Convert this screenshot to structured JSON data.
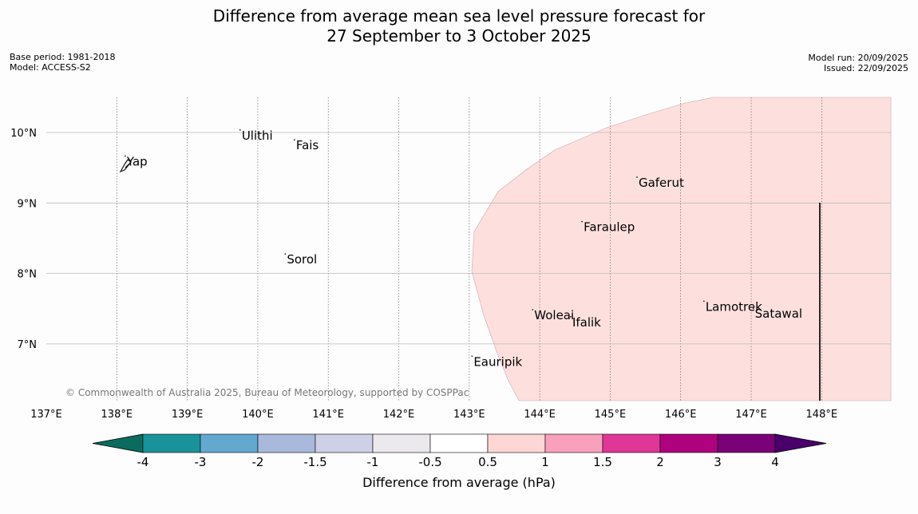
{
  "title_line1": "Difference from average mean sea level pressure forecast for",
  "title_line2": "27 September to 3 October 2025",
  "meta_left": [
    "Base period: 1981-2018",
    "Model: ACCESS-S2"
  ],
  "meta_right": [
    "Model run: 20/09/2025",
    "Issued: 22/09/2025"
  ],
  "copyright": "© Commonwealth of Australia 2025, Bureau of Meteorology, supported by COSPPac",
  "map": {
    "lon_range": [
      137,
      149
    ],
    "lat_range": [
      6.2,
      10.5
    ],
    "lon_ticks": [
      "137°E",
      "138°E",
      "139°E",
      "140°E",
      "141°E",
      "142°E",
      "143°E",
      "144°E",
      "145°E",
      "146°E",
      "147°E",
      "148°E"
    ],
    "lat_ticks": [
      "10°N",
      "9°N",
      "8°N",
      "7°N"
    ],
    "places": [
      {
        "name": "Ulithi",
        "lon": 139.75,
        "lat": 9.9
      },
      {
        "name": "Fais",
        "lon": 140.52,
        "lat": 9.76
      },
      {
        "name": "Yap",
        "lon": 138.12,
        "lat": 9.53
      },
      {
        "name": "Gaferut",
        "lon": 145.38,
        "lat": 9.23
      },
      {
        "name": "Faraulep",
        "lon": 144.6,
        "lat": 8.6
      },
      {
        "name": "Sorol",
        "lon": 140.39,
        "lat": 8.14
      },
      {
        "name": "Lamotrek",
        "lon": 146.33,
        "lat": 7.47
      },
      {
        "name": "Woleai",
        "lon": 143.9,
        "lat": 7.35
      },
      {
        "name": "Ifalik",
        "lon": 144.44,
        "lat": 7.25
      },
      {
        "name": "Satawal",
        "lon": 147.03,
        "lat": 7.37
      },
      {
        "name": "Eauripik",
        "lon": 143.04,
        "lat": 6.69
      }
    ],
    "anomaly_region_category": "0.5 to 1"
  },
  "colorbar": {
    "label": "Difference from average (hPa)",
    "ticks": [
      "-4",
      "-3",
      "-2",
      "-1.5",
      "-1",
      "-0.5",
      "0.5",
      "1",
      "1.5",
      "2",
      "3",
      "4"
    ],
    "colors": [
      "#0b6b5e",
      "#1a9299",
      "#62a8cf",
      "#a8b9dc",
      "#cdd0e6",
      "#ebe8ee",
      "#ffffff",
      "#fdd7d6",
      "#f8a0bc",
      "#df3697",
      "#ae017e",
      "#7a0177",
      "#49006a"
    ]
  }
}
